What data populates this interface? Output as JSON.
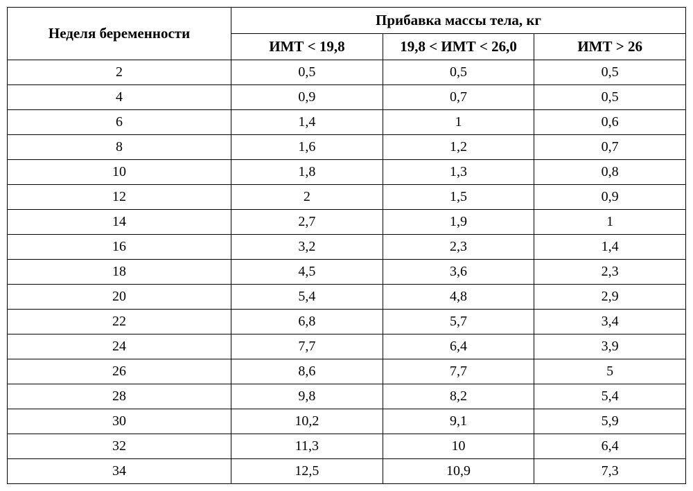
{
  "table": {
    "header": {
      "week_label": "Неделя беременности",
      "weight_gain_label": "Прибавка массы тела, кг",
      "bmi_low": "ИМТ < 19,8",
      "bmi_mid": "19,8 < ИМТ < 26,0",
      "bmi_high": "ИМТ > 26"
    },
    "rows": [
      {
        "week": "2",
        "low": "0,5",
        "mid": "0,5",
        "high": "0,5"
      },
      {
        "week": "4",
        "low": "0,9",
        "mid": "0,7",
        "high": "0,5"
      },
      {
        "week": "6",
        "low": "1,4",
        "mid": "1",
        "high": "0,6"
      },
      {
        "week": "8",
        "low": "1,6",
        "mid": "1,2",
        "high": "0,7"
      },
      {
        "week": "10",
        "low": "1,8",
        "mid": "1,3",
        "high": "0,8"
      },
      {
        "week": "12",
        "low": "2",
        "mid": "1,5",
        "high": "0,9"
      },
      {
        "week": "14",
        "low": "2,7",
        "mid": "1,9",
        "high": "1"
      },
      {
        "week": "16",
        "low": "3,2",
        "mid": "2,3",
        "high": "1,4"
      },
      {
        "week": "18",
        "low": "4,5",
        "mid": "3,6",
        "high": "2,3"
      },
      {
        "week": "20",
        "low": "5,4",
        "mid": "4,8",
        "high": "2,9"
      },
      {
        "week": "22",
        "low": "6,8",
        "mid": "5,7",
        "high": "3,4"
      },
      {
        "week": "24",
        "low": "7,7",
        "mid": "6,4",
        "high": "3,9"
      },
      {
        "week": "26",
        "low": "8,6",
        "mid": "7,7",
        "high": "5"
      },
      {
        "week": "28",
        "low": "9,8",
        "mid": "8,2",
        "high": "5,4"
      },
      {
        "week": "30",
        "low": "10,2",
        "mid": "9,1",
        "high": "5,9"
      },
      {
        "week": "32",
        "low": "11,3",
        "mid": "10",
        "high": "6,4"
      },
      {
        "week": "34",
        "low": "12,5",
        "mid": "10,9",
        "high": "7,3"
      }
    ],
    "styling": {
      "border_color": "#000000",
      "background_color": "#ffffff",
      "text_color": "#000000",
      "header_fontsize": 21,
      "cell_fontsize": 20,
      "font_family": "Georgia, Times New Roman, serif",
      "column_widths": {
        "week": "33%",
        "bmi_each": "22.3%"
      }
    }
  }
}
